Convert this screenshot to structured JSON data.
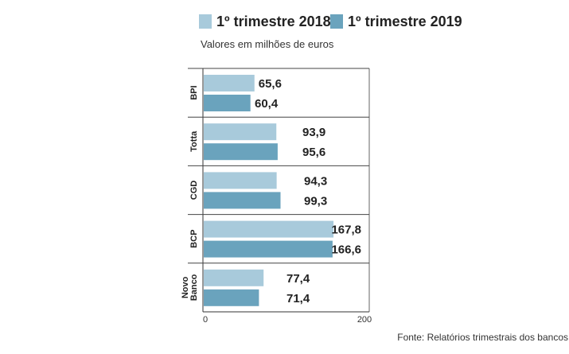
{
  "chart_data": {
    "type": "bar",
    "orientation": "horizontal",
    "subtitle": "Valores em milhões de euros",
    "source": "Fonte: Relatórios trimestrais dos bancos",
    "categories": [
      "BPI",
      "Totta",
      "CGD",
      "BCP",
      "Novo Banco"
    ],
    "category_display": [
      [
        "BPI"
      ],
      [
        "Totta"
      ],
      [
        "CGD"
      ],
      [
        "BCP"
      ],
      [
        "Novo",
        "Banco"
      ]
    ],
    "series": [
      {
        "name": "1º trimestre 2018",
        "color": "#a8cadb",
        "values": [
          65.6,
          93.9,
          94.3,
          167.8,
          77.4
        ],
        "labels": [
          "65,6",
          "93,9",
          "94,3",
          "167,8",
          "77,4"
        ]
      },
      {
        "name": "1º trimestre 2019",
        "color": "#6aa3bd",
        "values": [
          60.4,
          95.6,
          99.3,
          166.6,
          71.4
        ],
        "labels": [
          "60,4",
          "95,6",
          "99,3",
          "166,6",
          "71,4"
        ]
      }
    ],
    "xlim": [
      0,
      200
    ],
    "x_ticks": [
      "0",
      "200"
    ],
    "legend_position": "top",
    "grid": false
  }
}
